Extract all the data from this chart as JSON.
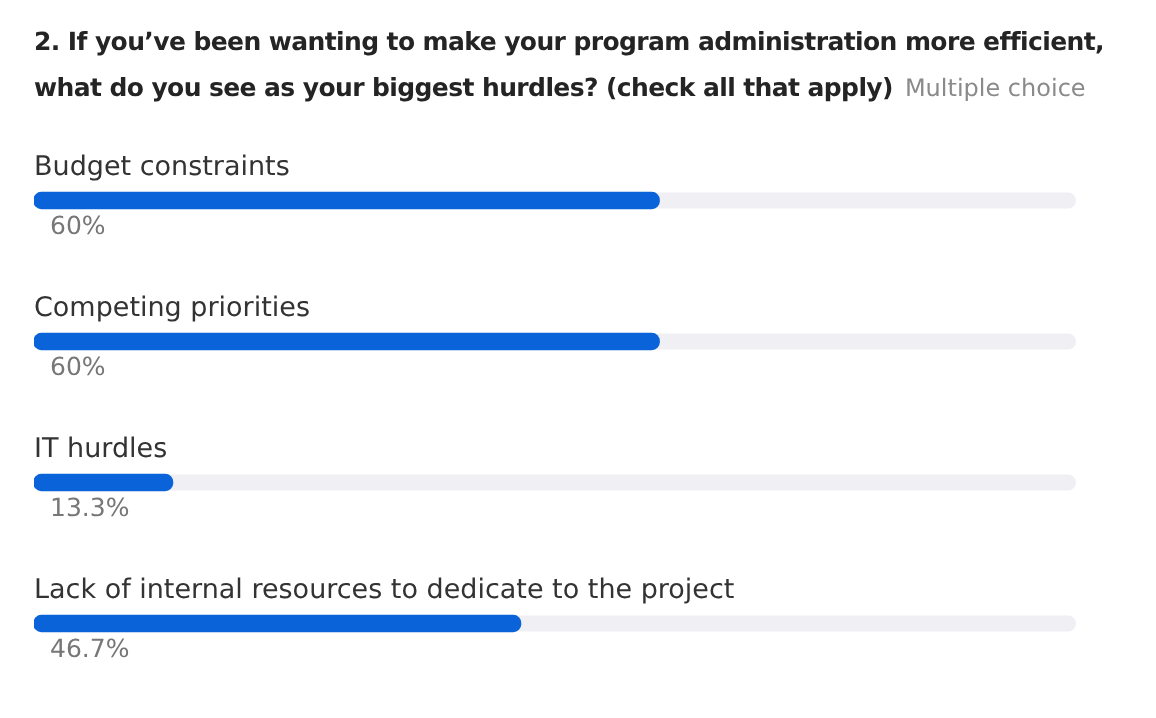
{
  "chart_data": {
    "type": "bar",
    "orientation": "horizontal",
    "title": "2. If you’ve been wanting to make your program administration more efficient, what do you see as your biggest hurdles? (check all that apply)",
    "subtitle": "Multiple choice",
    "categories": [
      "Budget constraints",
      "Competing priorities",
      "IT hurdles",
      "Lack of internal resources to dedicate to the project"
    ],
    "values": [
      60,
      60,
      13.3,
      46.7
    ],
    "value_labels": [
      "60%",
      "60%",
      "13.3%",
      "46.7%"
    ],
    "color": "#0b63d9",
    "xlim": [
      0,
      100
    ],
    "tick_labels": false,
    "grid": false,
    "legend": false
  }
}
